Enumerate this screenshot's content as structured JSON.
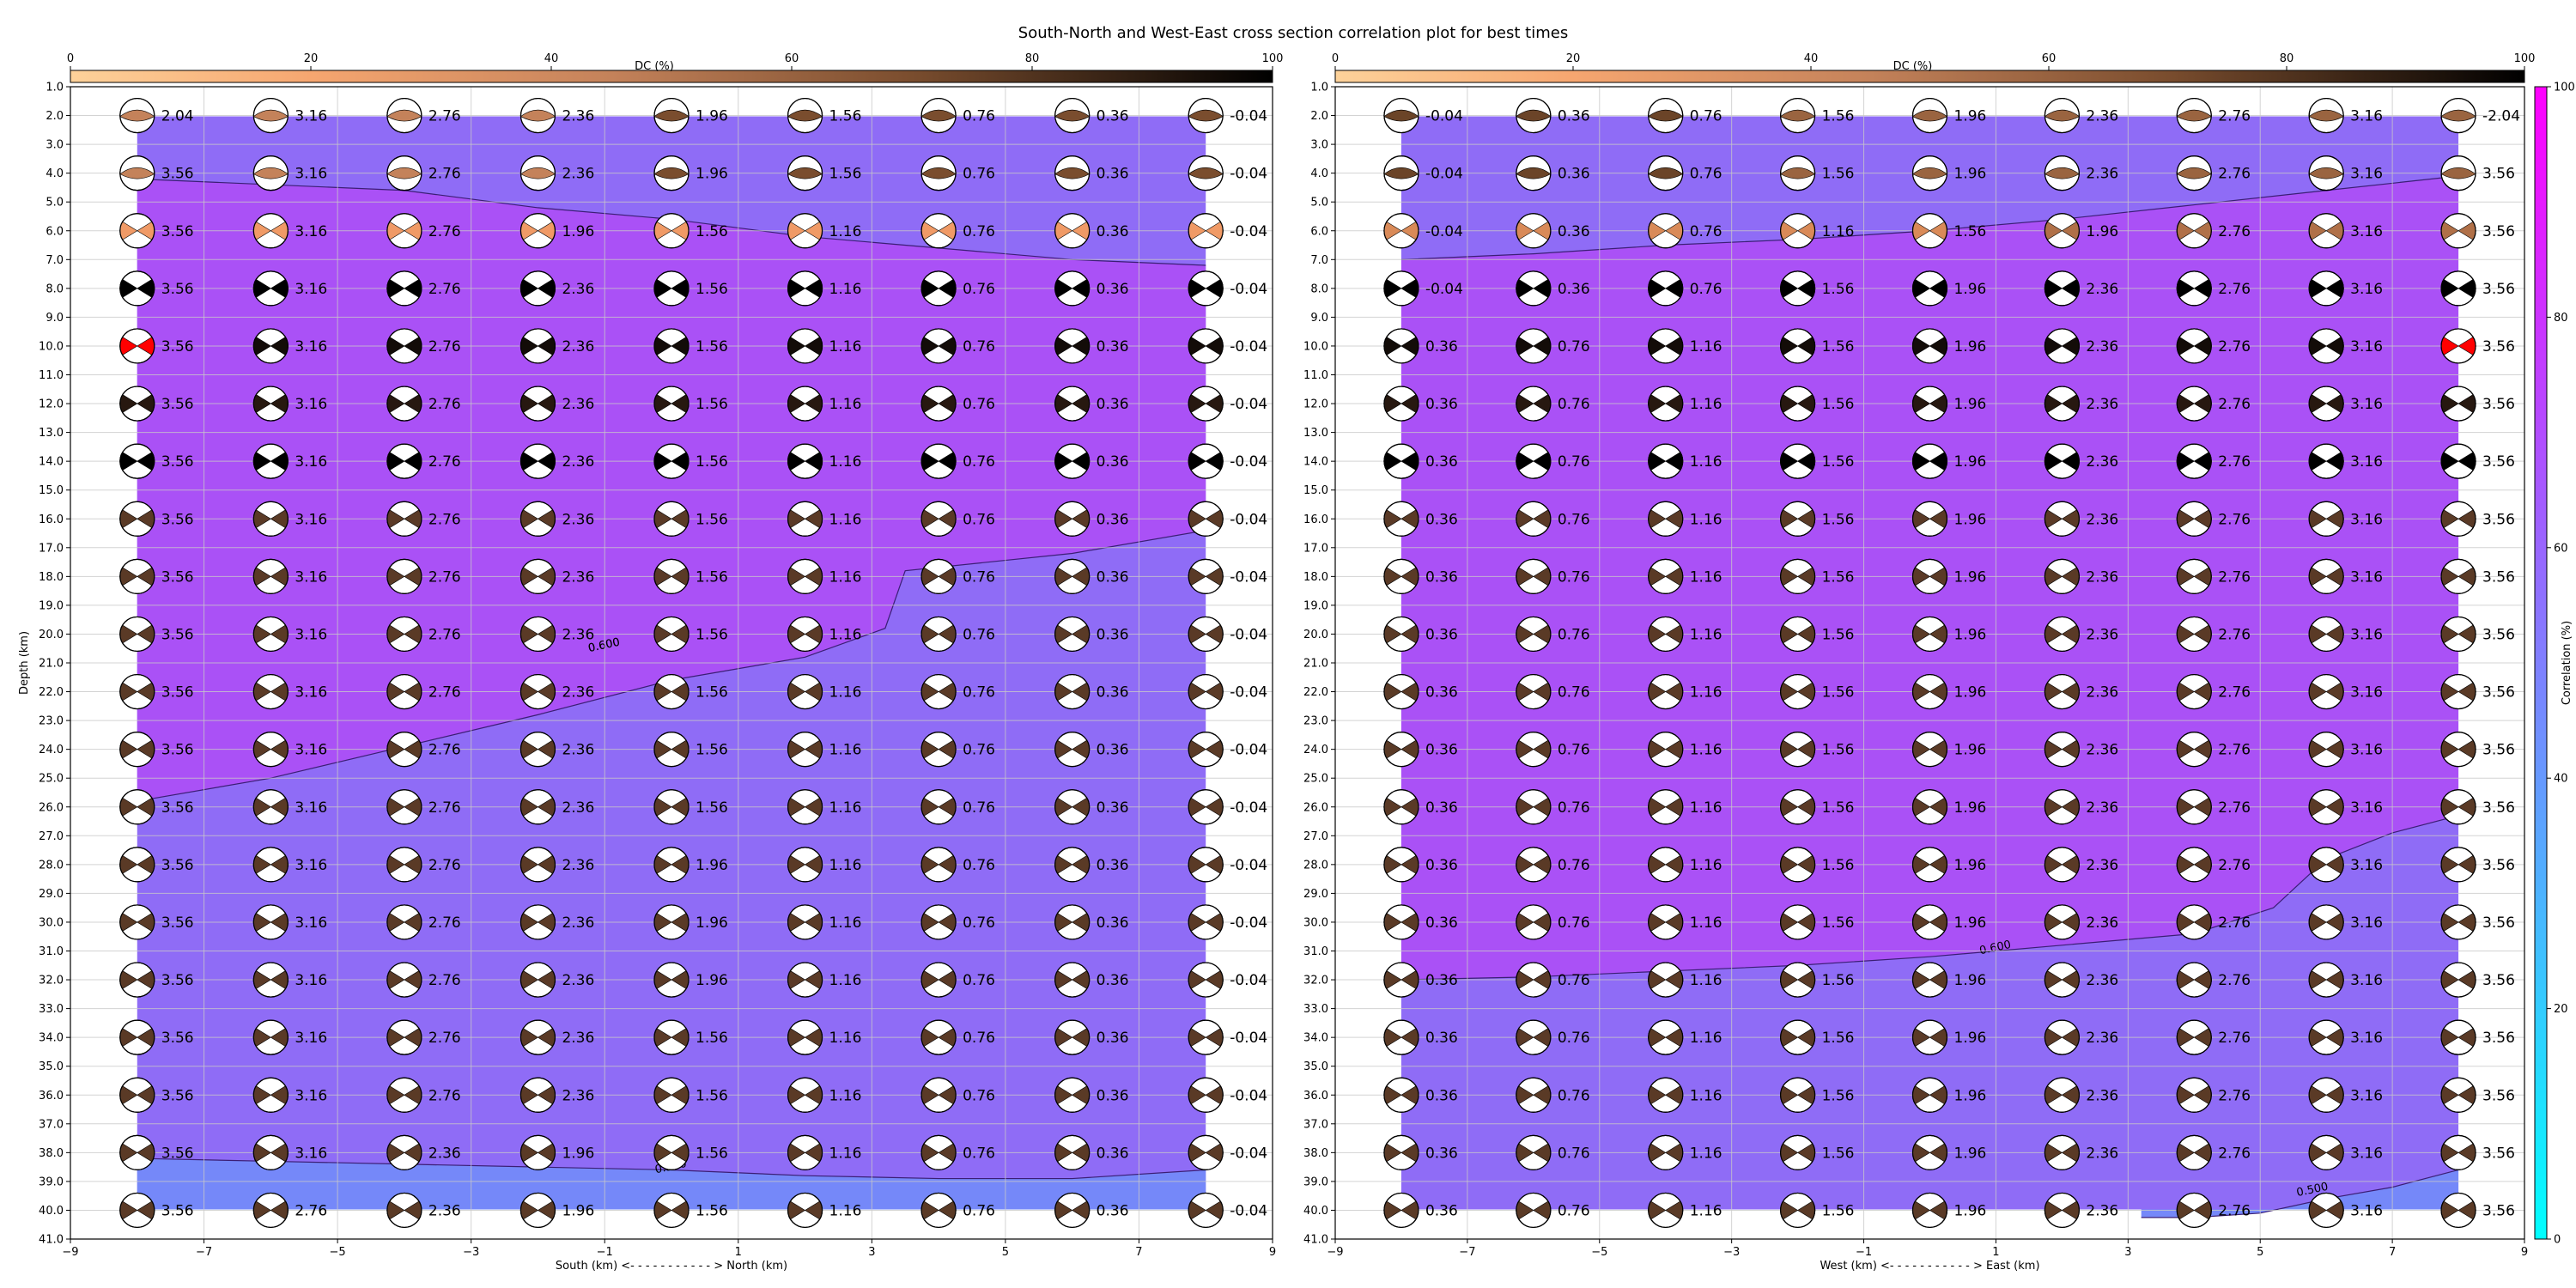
{
  "figure_title": "South-North and West-East cross section correlation plot for best times",
  "chart_data": [
    {
      "type": "heatmap",
      "panel": "south-north",
      "xlabel": "South (km) <- - - - - - - - - - - > North (km)",
      "ylabel": "Depth (km)",
      "xlim": [
        -9,
        9
      ],
      "ylim": [
        41,
        1
      ],
      "x_ticks": [
        "−9",
        "−7",
        "−5",
        "−3",
        "−1",
        "1",
        "3",
        "5",
        "7",
        "9"
      ],
      "y_ticks": [
        "1.0",
        "2.0",
        "3.0",
        "4.0",
        "5.0",
        "6.0",
        "7.0",
        "8.0",
        "9.0",
        "10.0",
        "11.0",
        "12.0",
        "13.0",
        "14.0",
        "15.0",
        "16.0",
        "17.0",
        "18.0",
        "19.0",
        "20.0",
        "21.0",
        "22.0",
        "23.0",
        "24.0",
        "25.0",
        "26.0",
        "27.0",
        "28.0",
        "29.0",
        "30.0",
        "31.0",
        "32.0",
        "33.0",
        "34.0",
        "35.0",
        "36.0",
        "37.0",
        "38.0",
        "39.0",
        "40.0",
        "41.0"
      ],
      "x_positions": [
        -8,
        -6,
        -4,
        -2,
        0,
        2,
        4,
        6,
        8
      ],
      "depths": [
        2,
        4,
        6,
        8,
        10,
        12,
        14,
        16,
        18,
        20,
        22,
        24,
        26,
        28,
        30,
        32,
        34,
        36,
        38,
        40
      ],
      "dc_colorbar": {
        "label": "DC (%)",
        "range": [
          0,
          100
        ],
        "ticks": [
          "0",
          "20",
          "40",
          "60",
          "80",
          "100"
        ]
      },
      "contours": [
        {
          "level": "0.600",
          "label_at": [
            -1,
            20.5
          ],
          "points": [
            [
              -8,
              4.2
            ],
            [
              -6,
              4.4
            ],
            [
              -4,
              4.6
            ],
            [
              -2,
              5.2
            ],
            [
              0,
              5.6
            ],
            [
              2,
              6.2
            ],
            [
              4,
              6.6
            ],
            [
              6,
              7.0
            ],
            [
              8,
              7.2
            ]
          ]
        },
        {
          "level": "0.600",
          "label_at": [
            -1,
            20.5
          ],
          "points": [
            [
              -8,
              25.8
            ],
            [
              -6,
              25
            ],
            [
              -4,
              23.9
            ],
            [
              -2,
              22.8
            ],
            [
              0,
              21.6
            ],
            [
              2,
              20.8
            ],
            [
              3.2,
              19.8
            ],
            [
              3.5,
              17.8
            ],
            [
              6,
              17.2
            ],
            [
              8,
              16.4
            ]
          ]
        },
        {
          "level": "0.500",
          "label_at": [
            0,
            38.6
          ],
          "points": [
            [
              -8,
              38.2
            ],
            [
              -6,
              38.3
            ],
            [
              -4,
              38.4
            ],
            [
              -2,
              38.5
            ],
            [
              0,
              38.6
            ],
            [
              2,
              38.8
            ],
            [
              4,
              38.9
            ],
            [
              6,
              38.9
            ],
            [
              8,
              38.6
            ]
          ]
        }
      ],
      "timeshift_rows": [
        [
          "2.04",
          "3.16",
          "2.76",
          "2.36",
          "1.96",
          "1.56",
          "0.76",
          "0.36",
          "-0.04"
        ],
        [
          "3.56",
          "3.16",
          "2.76",
          "2.36",
          "1.96",
          "1.56",
          "0.76",
          "0.36",
          "-0.04"
        ],
        [
          "3.56",
          "3.16",
          "2.76",
          "1.96",
          "1.56",
          "1.16",
          "0.76",
          "0.36",
          "-0.04"
        ],
        [
          "3.56",
          "3.16",
          "2.76",
          "2.36",
          "1.56",
          "1.16",
          "0.76",
          "0.36",
          "-0.04"
        ],
        [
          "3.56",
          "3.16",
          "2.76",
          "2.36",
          "1.56",
          "1.16",
          "0.76",
          "0.36",
          "-0.04"
        ],
        [
          "3.56",
          "3.16",
          "2.76",
          "2.36",
          "1.56",
          "1.16",
          "0.76",
          "0.36",
          "-0.04"
        ],
        [
          "3.56",
          "3.16",
          "2.76",
          "2.36",
          "1.56",
          "1.16",
          "0.76",
          "0.36",
          "-0.04"
        ],
        [
          "3.56",
          "3.16",
          "2.76",
          "2.36",
          "1.56",
          "1.16",
          "0.76",
          "0.36",
          "-0.04"
        ],
        [
          "3.56",
          "3.16",
          "2.76",
          "2.36",
          "1.56",
          "1.16",
          "0.76",
          "0.36",
          "-0.04"
        ],
        [
          "3.56",
          "3.16",
          "2.76",
          "2.36",
          "1.56",
          "1.16",
          "0.76",
          "0.36",
          "-0.04"
        ],
        [
          "3.56",
          "3.16",
          "2.76",
          "2.36",
          "1.56",
          "1.16",
          "0.76",
          "0.36",
          "-0.04"
        ],
        [
          "3.56",
          "3.16",
          "2.76",
          "2.36",
          "1.56",
          "1.16",
          "0.76",
          "0.36",
          "-0.04"
        ],
        [
          "3.56",
          "3.16",
          "2.76",
          "2.36",
          "1.56",
          "1.16",
          "0.76",
          "0.36",
          "-0.04"
        ],
        [
          "3.56",
          "3.16",
          "2.76",
          "2.36",
          "1.96",
          "1.16",
          "0.76",
          "0.36",
          "-0.04"
        ],
        [
          "3.56",
          "3.16",
          "2.76",
          "2.36",
          "1.96",
          "1.16",
          "0.76",
          "0.36",
          "-0.04"
        ],
        [
          "3.56",
          "3.16",
          "2.76",
          "2.36",
          "1.96",
          "1.16",
          "0.76",
          "0.36",
          "-0.04"
        ],
        [
          "3.56",
          "3.16",
          "2.76",
          "2.36",
          "1.56",
          "1.16",
          "0.76",
          "0.36",
          "-0.04"
        ],
        [
          "3.56",
          "3.16",
          "2.76",
          "2.36",
          "1.56",
          "1.16",
          "0.76",
          "0.36",
          "-0.04"
        ],
        [
          "3.56",
          "3.16",
          "2.36",
          "1.96",
          "1.56",
          "1.16",
          "0.76",
          "0.36",
          "-0.04"
        ],
        [
          "3.56",
          "2.76",
          "2.36",
          "1.96",
          "1.56",
          "1.16",
          "0.76",
          "0.36",
          "-0.04"
        ]
      ],
      "best_solution": {
        "x": -8,
        "depth": 10,
        "value": "3.56",
        "color": "#ff0000"
      }
    },
    {
      "type": "heatmap",
      "panel": "west-east",
      "xlabel": "West (km) <- - - - - - - - - - - > East (km)",
      "ylabel": "",
      "xlim": [
        -9,
        9
      ],
      "ylim": [
        41,
        1
      ],
      "x_ticks": [
        "−9",
        "−7",
        "−5",
        "−3",
        "−1",
        "1",
        "3",
        "5",
        "7",
        "9"
      ],
      "y_ticks": [
        "1.0",
        "2.0",
        "3.0",
        "4.0",
        "5.0",
        "6.0",
        "7.0",
        "8.0",
        "9.0",
        "10.0",
        "11.0",
        "12.0",
        "13.0",
        "14.0",
        "15.0",
        "16.0",
        "17.0",
        "18.0",
        "19.0",
        "20.0",
        "21.0",
        "22.0",
        "23.0",
        "24.0",
        "25.0",
        "26.0",
        "27.0",
        "28.0",
        "29.0",
        "30.0",
        "31.0",
        "32.0",
        "33.0",
        "34.0",
        "35.0",
        "36.0",
        "37.0",
        "38.0",
        "39.0",
        "40.0",
        "41.0"
      ],
      "x_positions": [
        -8,
        -6,
        -4,
        -2,
        0,
        2,
        4,
        6,
        8
      ],
      "depths": [
        2,
        4,
        6,
        8,
        10,
        12,
        14,
        16,
        18,
        20,
        22,
        24,
        26,
        28,
        30,
        32,
        34,
        36,
        38,
        40
      ],
      "dc_colorbar": {
        "label": "DC (%)",
        "range": [
          0,
          100
        ],
        "ticks": [
          "0",
          "20",
          "40",
          "60",
          "80",
          "100"
        ]
      },
      "correlation_colorbar": {
        "label": "Correlation (%)",
        "range": [
          0,
          100
        ],
        "ticks": [
          "0",
          "20",
          "40",
          "60",
          "80",
          "100"
        ],
        "colors": [
          "#00ffff",
          "#ff00ff"
        ]
      },
      "contours": [
        {
          "level": "",
          "label_at": null,
          "points": [
            [
              -8,
              7
            ],
            [
              -6,
              6.8
            ],
            [
              -4,
              6.5
            ],
            [
              -2,
              6.3
            ],
            [
              0,
              6.0
            ],
            [
              2,
              5.6
            ],
            [
              4,
              5.1
            ],
            [
              6,
              4.6
            ],
            [
              8,
              4.1
            ]
          ]
        },
        {
          "level": "0.600",
          "label_at": [
            1,
            31
          ],
          "points": [
            [
              -8,
              32
            ],
            [
              -6,
              31.9
            ],
            [
              -4,
              31.7
            ],
            [
              -2,
              31.5
            ],
            [
              0,
              31.2
            ],
            [
              2,
              30.8
            ],
            [
              4,
              30.4
            ],
            [
              5.2,
              29.5
            ],
            [
              6,
              27.8
            ],
            [
              7,
              26.9
            ],
            [
              8,
              26.3
            ]
          ]
        },
        {
          "level": "0.500",
          "label_at": [
            5.8,
            39.4
          ],
          "points": [
            [
              3.2,
              41
            ],
            [
              4,
              40.6
            ],
            [
              5,
              40.1
            ],
            [
              6,
              39.6
            ],
            [
              7,
              39.2
            ],
            [
              8,
              38.6
            ]
          ]
        }
      ],
      "timeshift_rows": [
        [
          "-0.04",
          "0.36",
          "0.76",
          "1.56",
          "1.96",
          "2.36",
          "2.76",
          "3.16",
          "-2.04"
        ],
        [
          "-0.04",
          "0.36",
          "0.76",
          "1.56",
          "1.96",
          "2.36",
          "2.76",
          "3.16",
          "3.56"
        ],
        [
          "-0.04",
          "0.36",
          "0.76",
          "1.16",
          "1.56",
          "1.96",
          "2.76",
          "3.16",
          "3.56"
        ],
        [
          "-0.04",
          "0.36",
          "0.76",
          "1.56",
          "1.96",
          "2.36",
          "2.76",
          "3.16",
          "3.56"
        ],
        [
          "0.36",
          "0.76",
          "1.16",
          "1.56",
          "1.96",
          "2.36",
          "2.76",
          "3.16",
          "3.56"
        ],
        [
          "0.36",
          "0.76",
          "1.16",
          "1.56",
          "1.96",
          "2.36",
          "2.76",
          "3.16",
          "3.56"
        ],
        [
          "0.36",
          "0.76",
          "1.16",
          "1.56",
          "1.96",
          "2.36",
          "2.76",
          "3.16",
          "3.56"
        ],
        [
          "0.36",
          "0.76",
          "1.16",
          "1.56",
          "1.96",
          "2.36",
          "2.76",
          "3.16",
          "3.56"
        ],
        [
          "0.36",
          "0.76",
          "1.16",
          "1.56",
          "1.96",
          "2.36",
          "2.76",
          "3.16",
          "3.56"
        ],
        [
          "0.36",
          "0.76",
          "1.16",
          "1.56",
          "1.96",
          "2.36",
          "2.76",
          "3.16",
          "3.56"
        ],
        [
          "0.36",
          "0.76",
          "1.16",
          "1.56",
          "1.96",
          "2.36",
          "2.76",
          "3.16",
          "3.56"
        ],
        [
          "0.36",
          "0.76",
          "1.16",
          "1.56",
          "1.96",
          "2.36",
          "2.76",
          "3.16",
          "3.56"
        ],
        [
          "0.36",
          "0.76",
          "1.16",
          "1.56",
          "1.96",
          "2.36",
          "2.76",
          "3.16",
          "3.56"
        ],
        [
          "0.36",
          "0.76",
          "1.16",
          "1.56",
          "1.96",
          "2.36",
          "2.76",
          "3.16",
          "3.56"
        ],
        [
          "0.36",
          "0.76",
          "1.16",
          "1.56",
          "1.96",
          "2.36",
          "2.76",
          "3.16",
          "3.56"
        ],
        [
          "0.36",
          "0.76",
          "1.16",
          "1.56",
          "1.96",
          "2.36",
          "2.76",
          "3.16",
          "3.56"
        ],
        [
          "0.36",
          "0.76",
          "1.16",
          "1.56",
          "1.96",
          "2.36",
          "2.76",
          "3.16",
          "3.56"
        ],
        [
          "0.36",
          "0.76",
          "1.16",
          "1.56",
          "1.96",
          "2.36",
          "2.76",
          "3.16",
          "3.56"
        ],
        [
          "0.36",
          "0.76",
          "1.16",
          "1.56",
          "1.96",
          "2.36",
          "2.76",
          "3.16",
          "3.56"
        ],
        [
          "0.36",
          "0.76",
          "1.16",
          "1.56",
          "1.96",
          "2.36",
          "2.76",
          "3.16",
          "3.56"
        ]
      ],
      "best_solution": {
        "x": 8,
        "depth": 10,
        "value": "3.56",
        "color": "#ff0000"
      }
    }
  ]
}
